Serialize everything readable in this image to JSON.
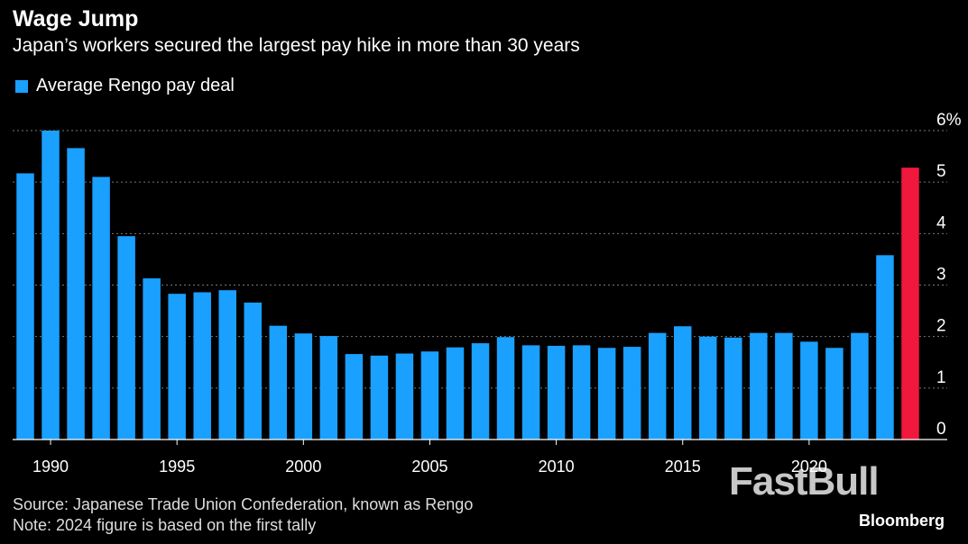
{
  "header": {
    "title": "Wage Jump",
    "subtitle": "Japan’s workers secured the largest pay hike in more than 30 years"
  },
  "legend": {
    "label": "Average Rengo pay deal"
  },
  "footer": {
    "source": "Source: Japanese Trade Union Confederation, known as Rengo",
    "note": "Note: 2024 figure is based on the first tally",
    "watermark": "FastBull",
    "brand": "Bloomberg"
  },
  "colors": {
    "bar": "#1aa0ff",
    "highlight": "#f0183c",
    "grid": "#777777",
    "background": "#000000"
  },
  "chart_data": {
    "type": "bar",
    "title": "Wage Jump",
    "xlabel": "",
    "ylabel": "",
    "series_name": "Average Rengo pay deal",
    "x": [
      1989,
      1990,
      1991,
      1992,
      1993,
      1994,
      1995,
      1996,
      1997,
      1998,
      1999,
      2000,
      2001,
      2002,
      2003,
      2004,
      2005,
      2006,
      2007,
      2008,
      2009,
      2010,
      2011,
      2012,
      2013,
      2014,
      2015,
      2016,
      2017,
      2018,
      2019,
      2020,
      2021,
      2022,
      2023,
      2024
    ],
    "values": [
      5.17,
      6.0,
      5.66,
      5.1,
      3.95,
      3.13,
      2.83,
      2.86,
      2.9,
      2.66,
      2.21,
      2.06,
      2.01,
      1.66,
      1.63,
      1.67,
      1.71,
      1.79,
      1.87,
      1.99,
      1.83,
      1.82,
      1.83,
      1.78,
      1.8,
      2.07,
      2.2,
      2.0,
      1.98,
      2.07,
      2.07,
      1.9,
      1.78,
      2.07,
      3.58,
      5.28
    ],
    "highlight": [
      2024
    ],
    "ylim": [
      0,
      6
    ],
    "yticks": [
      "0",
      "1",
      "2",
      "3",
      "4",
      "5",
      "6%"
    ],
    "xticks": [
      "1990",
      "1995",
      "2000",
      "2005",
      "2010",
      "2015",
      "2020"
    ],
    "grid": true,
    "y_axis_side": "right"
  }
}
